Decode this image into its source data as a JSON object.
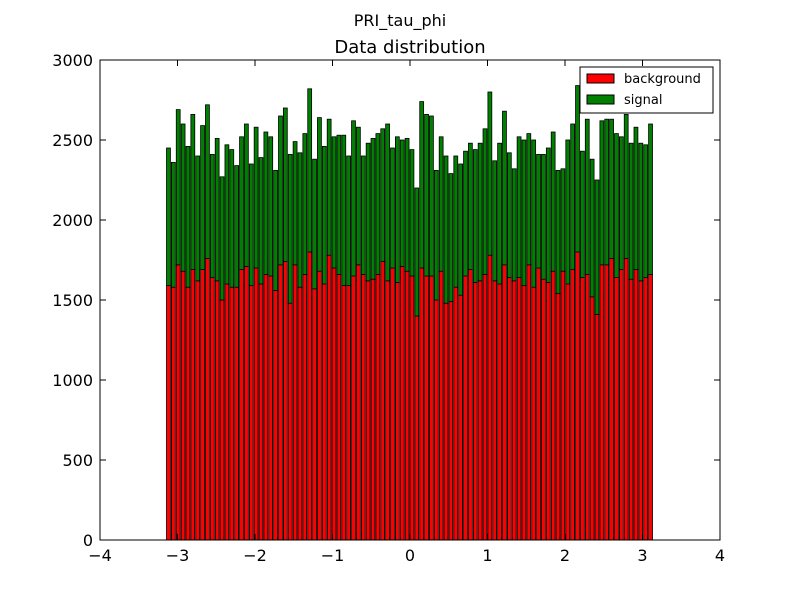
{
  "suptitle": "PRI_tau_phi",
  "chart_data": {
    "type": "bar",
    "stacked": true,
    "title": "Data distribution",
    "xlim": [
      -4,
      4
    ],
    "ylim": [
      0,
      3000
    ],
    "x_ticks": [
      -4,
      -3,
      -2,
      -1,
      0,
      1,
      2,
      3,
      4
    ],
    "x_tick_labels": [
      "−4",
      "−3",
      "−2",
      "−1",
      "0",
      "1",
      "2",
      "3",
      "4"
    ],
    "y_ticks": [
      0,
      500,
      1000,
      1500,
      2000,
      2500,
      3000
    ],
    "y_tick_labels": [
      "0",
      "500",
      "1000",
      "1500",
      "2000",
      "2500",
      "3000"
    ],
    "legend_position": "top-right",
    "x_range": [
      -3.1416,
      3.1416
    ],
    "bins": 100,
    "series": [
      {
        "name": "background",
        "color": "#ff0000",
        "values": [
          1590,
          1580,
          1720,
          1680,
          1580,
          1690,
          1620,
          1690,
          1760,
          1640,
          1620,
          1500,
          1600,
          1580,
          1580,
          1690,
          1710,
          1590,
          1700,
          1600,
          1660,
          1650,
          1560,
          1720,
          1740,
          1480,
          1720,
          1580,
          1660,
          1800,
          1570,
          1680,
          1600,
          1780,
          1700,
          1660,
          1590,
          1590,
          1650,
          1720,
          1660,
          1620,
          1630,
          1660,
          1740,
          1620,
          1700,
          1610,
          1710,
          1680,
          1650,
          1400,
          1700,
          1650,
          1650,
          1500,
          1680,
          1480,
          1490,
          1580,
          1530,
          1650,
          1690,
          1610,
          1620,
          1660,
          1780,
          1620,
          1600,
          1720,
          1640,
          1620,
          1640,
          1590,
          1720,
          1580,
          1700,
          1630,
          1610,
          1680,
          1540,
          1680,
          1600,
          1690,
          1800,
          1640,
          1660,
          1520,
          1410,
          1720,
          1720,
          1760,
          1640,
          1690,
          1760,
          1630,
          1690,
          1620,
          1640,
          1660
        ]
      },
      {
        "name": "signal",
        "color": "#008000",
        "values": [
          860,
          780,
          970,
          920,
          880,
          970,
          780,
          900,
          960,
          770,
          890,
          770,
          870,
          860,
          760,
          830,
          890,
          760,
          880,
          790,
          890,
          870,
          750,
          930,
          960,
          930,
          770,
          840,
          880,
          1020,
          810,
          960,
          860,
          850,
          820,
          870,
          940,
          810,
          970,
          860,
          740,
          860,
          880,
          880,
          830,
          980,
          750,
          910,
          790,
          830,
          790,
          800,
          1040,
          1010,
          1000,
          810,
          840,
          920,
          800,
          820,
          820,
          780,
          790,
          830,
          860,
          910,
          1020,
          750,
          880,
          960,
          780,
          700,
          880,
          910,
          820,
          920,
          710,
          780,
          840,
          870,
          770,
          640,
          900,
          910,
          1040,
          790,
          970,
          860,
          840,
          900,
          910,
          870,
          900,
          830,
          900,
          850,
          890,
          860,
          830,
          940
        ]
      }
    ]
  }
}
